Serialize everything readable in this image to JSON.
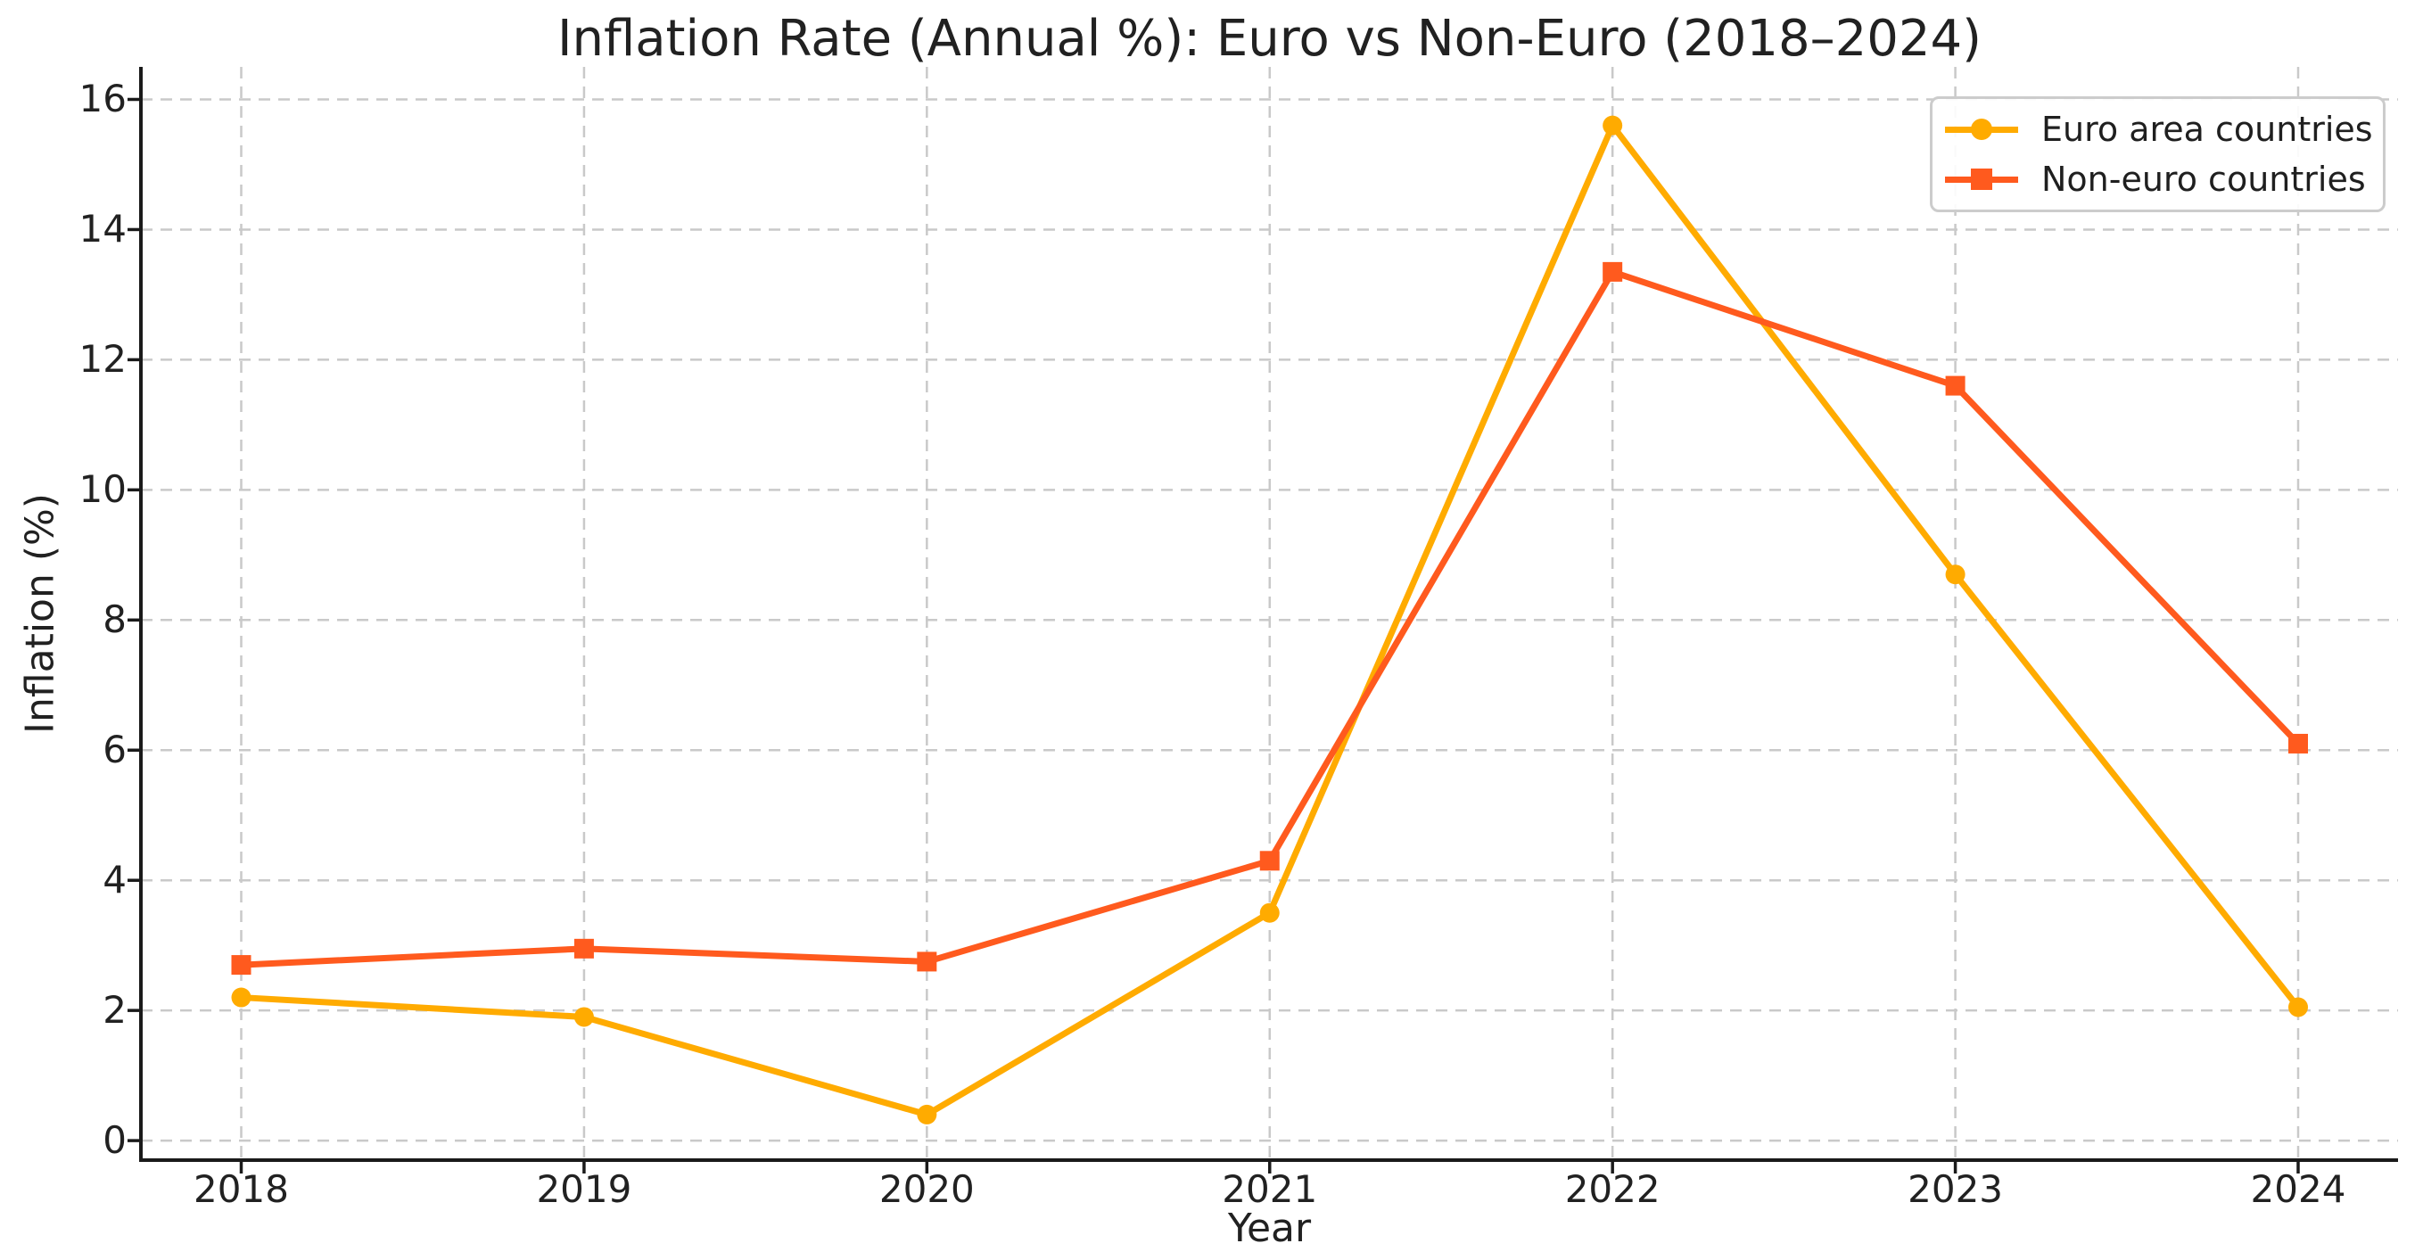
{
  "chart_data": {
    "type": "line",
    "title": "Inflation Rate (Annual %): Euro vs Non-Euro (2018–2024)",
    "xlabel": "Year",
    "ylabel": "Inflation (%)",
    "x": [
      2018,
      2019,
      2020,
      2021,
      2022,
      2023,
      2024
    ],
    "series": [
      {
        "name": "Euro area countries",
        "marker": "circle",
        "color": "#FFAB00",
        "values": [
          2.2,
          1.9,
          0.4,
          3.5,
          15.6,
          8.7,
          2.05
        ]
      },
      {
        "name": "Non-euro countries",
        "marker": "square",
        "color": "#FF5A1E",
        "values": [
          2.7,
          2.95,
          2.75,
          4.3,
          13.35,
          11.6,
          6.1
        ]
      }
    ],
    "ylim": [
      -0.3,
      16.5
    ],
    "yticks": [
      0,
      2,
      4,
      6,
      8,
      10,
      12,
      14,
      16
    ],
    "grid": {
      "visible": true,
      "style": "dashed",
      "color": "#C9C9C9"
    },
    "legend": {
      "position": "upper right"
    },
    "axis_color": "#1A1A1A",
    "text_color": "#212121"
  }
}
